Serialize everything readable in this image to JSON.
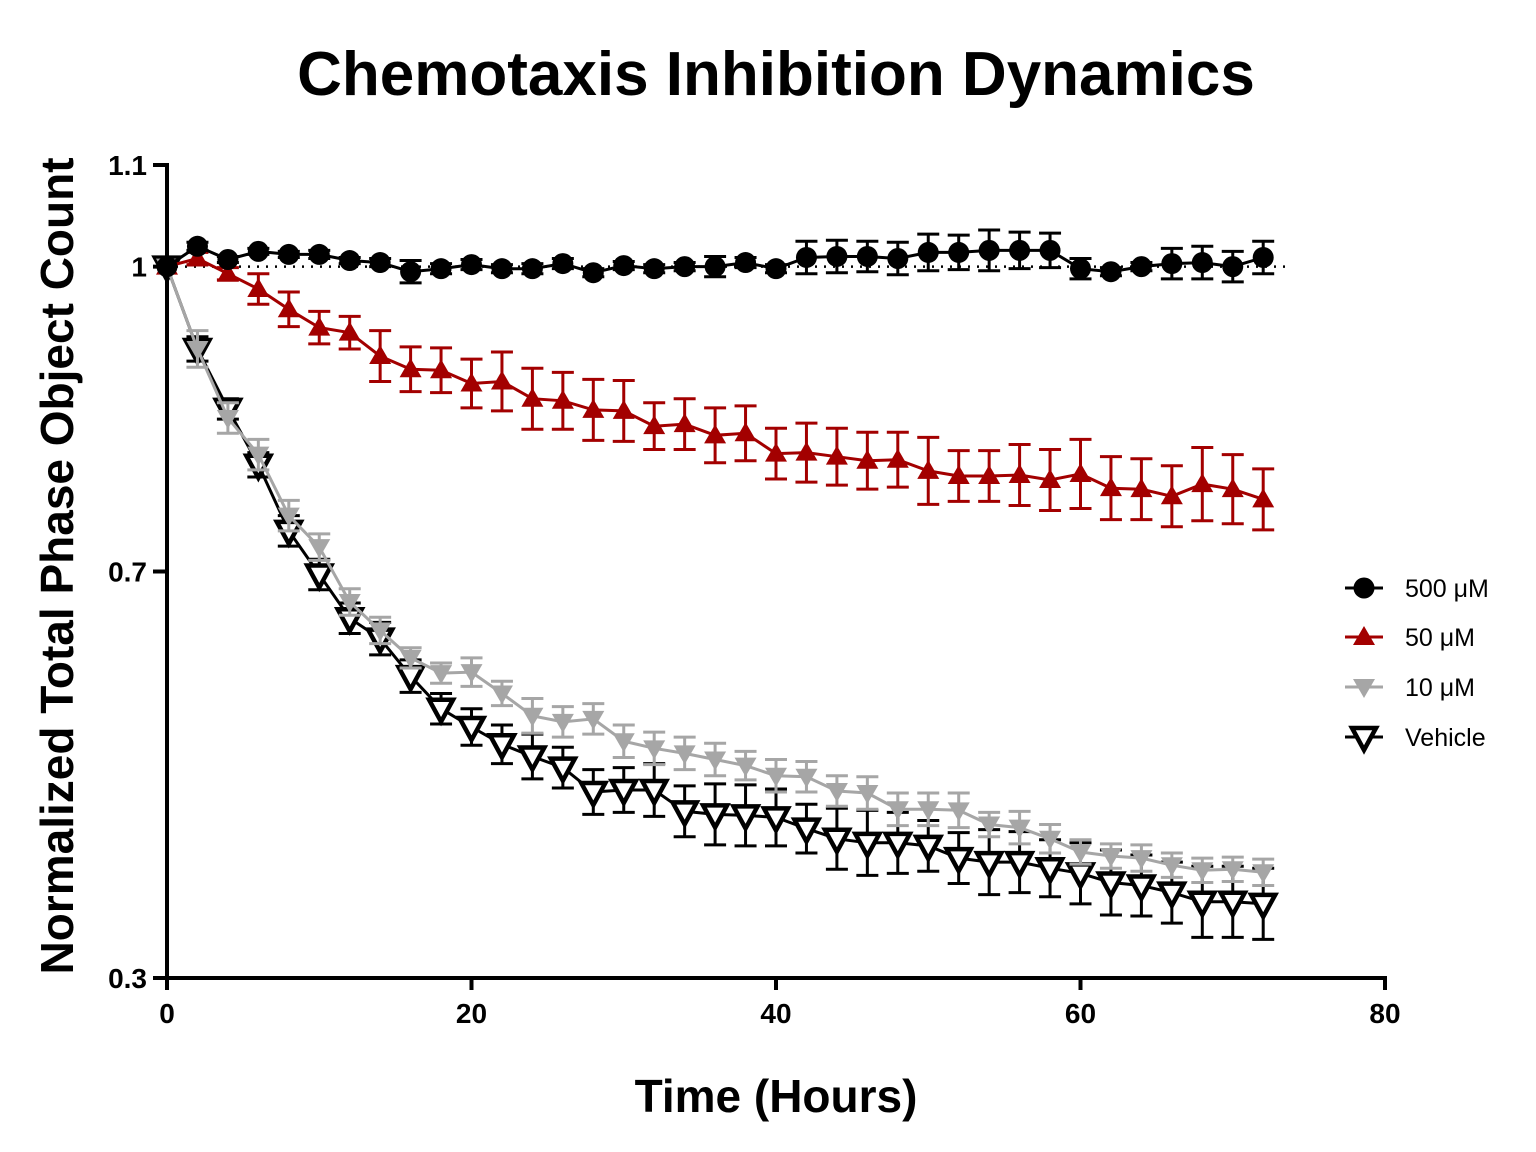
{
  "chart_data": {
    "type": "line",
    "title": "Chemotaxis Inhibition Dynamics",
    "xlabel": "Time (Hours)",
    "ylabel": "Normalized Total Phase Object Count",
    "xlim": [
      0,
      80
    ],
    "ylim": [
      0.3,
      1.1
    ],
    "xticks": [
      0,
      20,
      40,
      60,
      80
    ],
    "yticks": [
      0.3,
      0.7,
      1,
      1.1
    ],
    "ytick_labels": [
      "0.3",
      "0.7",
      "1",
      "1.1"
    ],
    "reference_line": {
      "y": 1.0,
      "style": "dotted"
    },
    "legend_position": "right",
    "x": [
      0,
      2,
      4,
      6,
      8,
      10,
      12,
      14,
      16,
      18,
      20,
      22,
      24,
      26,
      28,
      30,
      32,
      34,
      36,
      38,
      40,
      42,
      44,
      46,
      48,
      50,
      52,
      54,
      56,
      58,
      60,
      62,
      64,
      66,
      68,
      70,
      72
    ],
    "series": [
      {
        "name": "500 μM",
        "marker": "circle",
        "color": "#000000",
        "values": [
          1.0,
          1.02,
          1.007,
          1.015,
          1.012,
          1.012,
          1.006,
          1.004,
          0.995,
          0.998,
          1.002,
          0.998,
          0.998,
          1.003,
          0.994,
          1.001,
          0.998,
          1.0,
          1.0,
          1.004,
          0.998,
          1.009,
          1.01,
          1.01,
          1.008,
          1.014,
          1.014,
          1.016,
          1.016,
          1.016,
          0.998,
          0.995,
          1.0,
          1.003,
          1.004,
          1.0,
          1.009
        ],
        "errors": [
          0,
          0.004,
          0.003,
          0.003,
          0.003,
          0.004,
          0.003,
          0.004,
          0.011,
          0.005,
          0.005,
          0.004,
          0.005,
          0.005,
          0.004,
          0.004,
          0.004,
          0.004,
          0.01,
          0.005,
          0.004,
          0.016,
          0.016,
          0.015,
          0.016,
          0.018,
          0.017,
          0.02,
          0.018,
          0.017,
          0.01,
          0.004,
          0.004,
          0.015,
          0.016,
          0.015,
          0.016
        ]
      },
      {
        "name": "50 μM",
        "marker": "triangle-up",
        "color": "#A30000",
        "values": [
          1.0,
          1.008,
          0.993,
          0.978,
          0.958,
          0.94,
          0.935,
          0.912,
          0.899,
          0.898,
          0.885,
          0.887,
          0.87,
          0.868,
          0.859,
          0.858,
          0.843,
          0.845,
          0.834,
          0.836,
          0.816,
          0.817,
          0.813,
          0.809,
          0.81,
          0.799,
          0.794,
          0.794,
          0.795,
          0.79,
          0.796,
          0.782,
          0.781,
          0.774,
          0.786,
          0.781,
          0.771
        ],
        "errors": [
          0,
          0.006,
          0.006,
          0.015,
          0.017,
          0.016,
          0.016,
          0.025,
          0.022,
          0.022,
          0.024,
          0.029,
          0.03,
          0.028,
          0.03,
          0.03,
          0.023,
          0.025,
          0.027,
          0.027,
          0.025,
          0.029,
          0.028,
          0.028,
          0.027,
          0.033,
          0.025,
          0.025,
          0.03,
          0.03,
          0.034,
          0.031,
          0.03,
          0.03,
          0.036,
          0.034,
          0.03
        ]
      },
      {
        "name": "10 μM",
        "marker": "triangle-down",
        "color": "#A6A6A6",
        "values": [
          1.0,
          0.919,
          0.851,
          0.815,
          0.755,
          0.724,
          0.67,
          0.642,
          0.615,
          0.6,
          0.601,
          0.58,
          0.558,
          0.552,
          0.555,
          0.533,
          0.526,
          0.521,
          0.515,
          0.509,
          0.499,
          0.498,
          0.484,
          0.482,
          0.466,
          0.466,
          0.465,
          0.451,
          0.448,
          0.437,
          0.424,
          0.42,
          0.418,
          0.411,
          0.406,
          0.407,
          0.404
        ],
        "errors": [
          0,
          0.018,
          0.015,
          0.015,
          0.015,
          0.013,
          0.013,
          0.013,
          0.01,
          0.01,
          0.014,
          0.012,
          0.017,
          0.015,
          0.015,
          0.016,
          0.016,
          0.016,
          0.016,
          0.014,
          0.016,
          0.015,
          0.015,
          0.016,
          0.016,
          0.016,
          0.017,
          0.012,
          0.016,
          0.014,
          0.012,
          0.012,
          0.013,
          0.012,
          0.012,
          0.012,
          0.013
        ]
      },
      {
        "name": "Vehicle",
        "marker": "triangle-down-open",
        "color": "#000000",
        "values": [
          1.0,
          0.919,
          0.86,
          0.805,
          0.74,
          0.697,
          0.654,
          0.634,
          0.597,
          0.565,
          0.547,
          0.53,
          0.518,
          0.507,
          0.483,
          0.485,
          0.485,
          0.464,
          0.461,
          0.46,
          0.458,
          0.447,
          0.437,
          0.433,
          0.433,
          0.43,
          0.418,
          0.414,
          0.414,
          0.408,
          0.403,
          0.394,
          0.391,
          0.384,
          0.375,
          0.375,
          0.373
        ],
        "errors": [
          0,
          0.012,
          0.01,
          0.012,
          0.015,
          0.015,
          0.015,
          0.016,
          0.016,
          0.015,
          0.018,
          0.019,
          0.022,
          0.02,
          0.022,
          0.022,
          0.026,
          0.025,
          0.03,
          0.03,
          0.028,
          0.024,
          0.03,
          0.032,
          0.03,
          0.025,
          0.025,
          0.032,
          0.03,
          0.028,
          0.03,
          0.032,
          0.03,
          0.03,
          0.035,
          0.035,
          0.035
        ]
      }
    ]
  }
}
